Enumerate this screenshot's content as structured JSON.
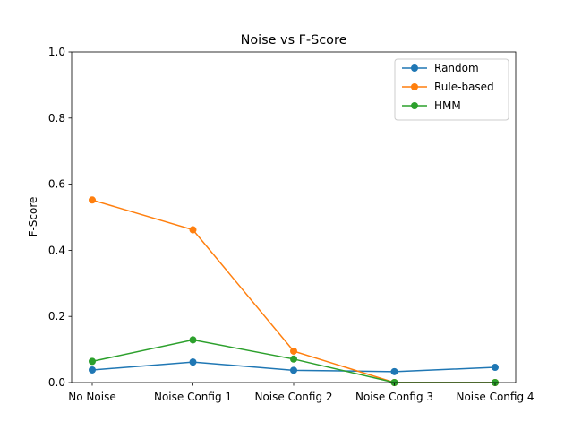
{
  "chart_data": {
    "type": "line",
    "title": "Noise vs F-Score",
    "xlabel": "",
    "ylabel": "F-Score",
    "ylim": [
      0,
      1.0
    ],
    "yticks": [
      "0.0",
      "0.2",
      "0.4",
      "0.6",
      "0.8",
      "1.0"
    ],
    "categories": [
      "No Noise",
      "Noise Config 1",
      "Noise Config 2",
      "Noise Config 3",
      "Noise Config 4"
    ],
    "grid": false,
    "legend_position": "top-right",
    "series": [
      {
        "name": "Random",
        "color": "#1f77b4",
        "values": [
          0.038,
          0.062,
          0.037,
          0.033,
          0.046
        ]
      },
      {
        "name": "Rule-based",
        "color": "#ff7f0e",
        "values": [
          0.552,
          0.462,
          0.095,
          0.0,
          0.0
        ]
      },
      {
        "name": "HMM",
        "color": "#2ca02c",
        "values": [
          0.064,
          0.129,
          0.071,
          0.0,
          0.0
        ]
      }
    ]
  }
}
